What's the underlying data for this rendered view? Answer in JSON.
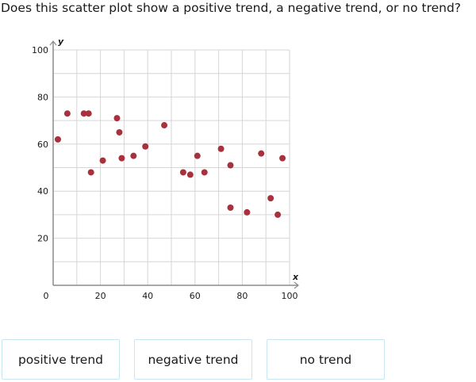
{
  "question": "Does this scatter plot show a positive trend, a negative trend, or no trend?",
  "choices": [
    "positive trend",
    "negative trend",
    "no trend"
  ],
  "colors": {
    "point": "#a8313d",
    "grid": "#d6d6d6",
    "axis": "#8c8c8c",
    "choice_border": "#c9e6f3"
  },
  "chart_data": {
    "type": "scatter",
    "xlabel": "x",
    "ylabel": "y",
    "xlim": [
      0,
      100
    ],
    "ylim": [
      0,
      100
    ],
    "xticks": [
      "0",
      "20",
      "40",
      "60",
      "80",
      "100"
    ],
    "yticks": [
      "20",
      "40",
      "60",
      "80",
      "100"
    ],
    "grid": true,
    "points": [
      {
        "x": 2,
        "y": 62
      },
      {
        "x": 6,
        "y": 73
      },
      {
        "x": 13,
        "y": 73
      },
      {
        "x": 15,
        "y": 73
      },
      {
        "x": 16,
        "y": 48
      },
      {
        "x": 21,
        "y": 53
      },
      {
        "x": 27,
        "y": 71
      },
      {
        "x": 28,
        "y": 65
      },
      {
        "x": 29,
        "y": 54
      },
      {
        "x": 34,
        "y": 55
      },
      {
        "x": 39,
        "y": 59
      },
      {
        "x": 47,
        "y": 68
      },
      {
        "x": 55,
        "y": 48
      },
      {
        "x": 58,
        "y": 47
      },
      {
        "x": 61,
        "y": 55
      },
      {
        "x": 64,
        "y": 48
      },
      {
        "x": 71,
        "y": 58
      },
      {
        "x": 75,
        "y": 51
      },
      {
        "x": 75,
        "y": 33
      },
      {
        "x": 82,
        "y": 31
      },
      {
        "x": 88,
        "y": 56
      },
      {
        "x": 92,
        "y": 37
      },
      {
        "x": 95,
        "y": 30
      },
      {
        "x": 97,
        "y": 54
      }
    ]
  }
}
